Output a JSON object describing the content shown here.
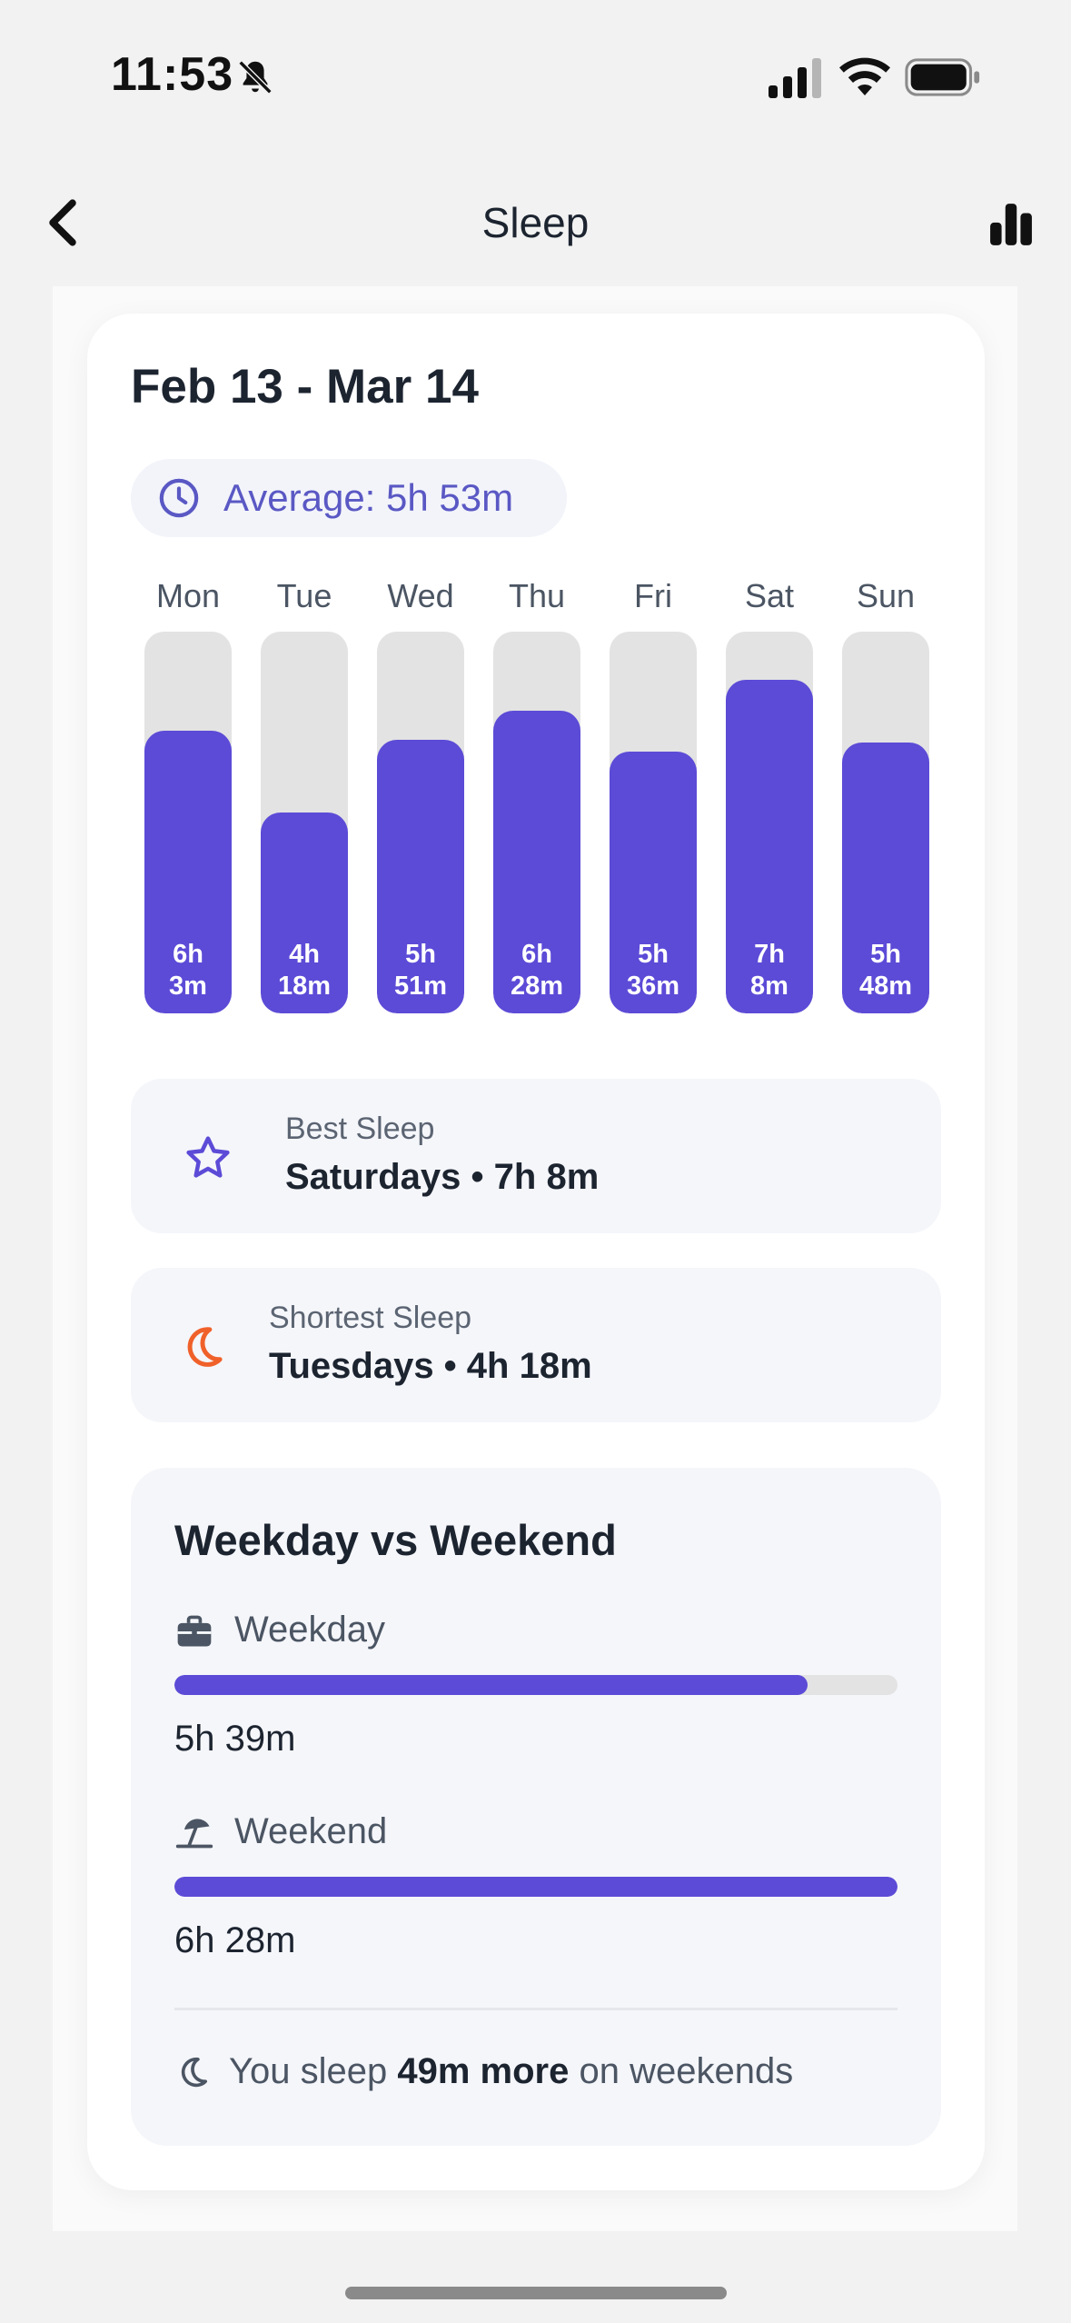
{
  "status_bar": {
    "time": "11:53"
  },
  "nav": {
    "title": "Sleep"
  },
  "card": {
    "date_range": "Feb 13 - Mar 14",
    "average": "Average: 5h 53m"
  },
  "chart_data": {
    "type": "bar",
    "categories": [
      "Mon",
      "Tue",
      "Wed",
      "Thu",
      "Fri",
      "Sat",
      "Sun"
    ],
    "values_minutes": [
      363,
      258,
      351,
      388,
      336,
      428,
      348
    ],
    "labels_line1": [
      "6h",
      "4h",
      "5h",
      "6h",
      "5h",
      "7h",
      "5h"
    ],
    "labels_line2": [
      "3m",
      "18m",
      "51m",
      "28m",
      "36m",
      "8m",
      "48m"
    ],
    "ylim_minutes": [
      0,
      490
    ],
    "bar_color": "#5c4bd7",
    "track_color": "#e3e3e3"
  },
  "best_sleep": {
    "label": "Best Sleep",
    "value": "Saturdays • 7h 8m",
    "icon": "star-icon",
    "icon_color": "#5c4bd7"
  },
  "shortest_sleep": {
    "label": "Shortest Sleep",
    "value": "Tuesdays • 4h 18m",
    "icon": "moon-icon",
    "icon_color": "#f0612a"
  },
  "weekday_weekend": {
    "title": "Weekday vs Weekend",
    "weekday": {
      "label": "Weekday",
      "value": "5h 39m",
      "fraction": 0.875
    },
    "weekend": {
      "label": "Weekend",
      "value": "6h 28m",
      "fraction": 1.0
    },
    "note_prefix": "You sleep",
    "note_bold": "49m more",
    "note_suffix": "on weekends"
  },
  "colors": {
    "accent": "#5c4bd7",
    "avg_text": "#5a58c4",
    "background": "#f2f2f2"
  }
}
